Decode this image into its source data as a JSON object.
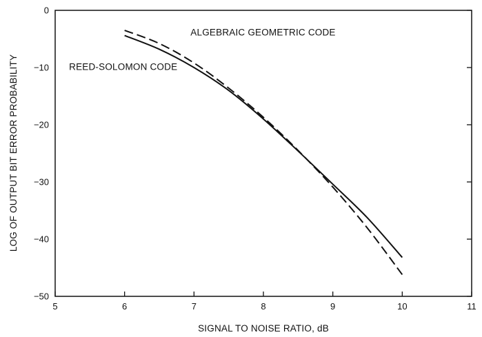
{
  "chart_data": {
    "type": "line",
    "title": "",
    "xlabel": "SIGNAL TO NOISE RATIO, dB",
    "ylabel": "LOG OF OUTPUT BIT ERROR PROBABILITY",
    "xlim": [
      5,
      11
    ],
    "ylim": [
      -50,
      0
    ],
    "xticks": [
      5,
      6,
      7,
      8,
      9,
      10,
      11
    ],
    "yticks": [
      0,
      -10,
      -20,
      -30,
      -40,
      -50
    ],
    "xtick_labels": [
      "5",
      "6",
      "7",
      "8",
      "9",
      "10",
      "11"
    ],
    "ytick_labels": [
      "0",
      "−10",
      "−20",
      "−30",
      "−40",
      "−50"
    ],
    "grid": false,
    "series": [
      {
        "name": "ALGEBRAIC GEOMETRIC CODE",
        "style": "dashed",
        "x": [
          6.0,
          6.5,
          7.0,
          7.5,
          8.0,
          8.5,
          9.0,
          9.5,
          10.0
        ],
        "y": [
          -3.5,
          -5.8,
          -9.2,
          -13.6,
          -18.7,
          -24.5,
          -30.9,
          -38.1,
          -46.2
        ]
      },
      {
        "name": "REED-SOLOMON CODE",
        "style": "solid",
        "x": [
          6.0,
          6.5,
          7.0,
          7.5,
          8.0,
          8.5,
          9.0,
          9.5,
          10.0
        ],
        "y": [
          -4.4,
          -6.8,
          -10.0,
          -14.0,
          -19.0,
          -24.6,
          -30.4,
          -36.3,
          -43.2
        ]
      }
    ],
    "annotations": [
      {
        "text": "ALGEBRAIC GEOMETRIC CODE",
        "x": 6.95,
        "y": -4.4
      },
      {
        "text": "REED-SOLOMON CODE",
        "x": 5.2,
        "y": -10.4
      }
    ],
    "colors": {
      "line": "#111111",
      "axis": "#111111"
    }
  }
}
